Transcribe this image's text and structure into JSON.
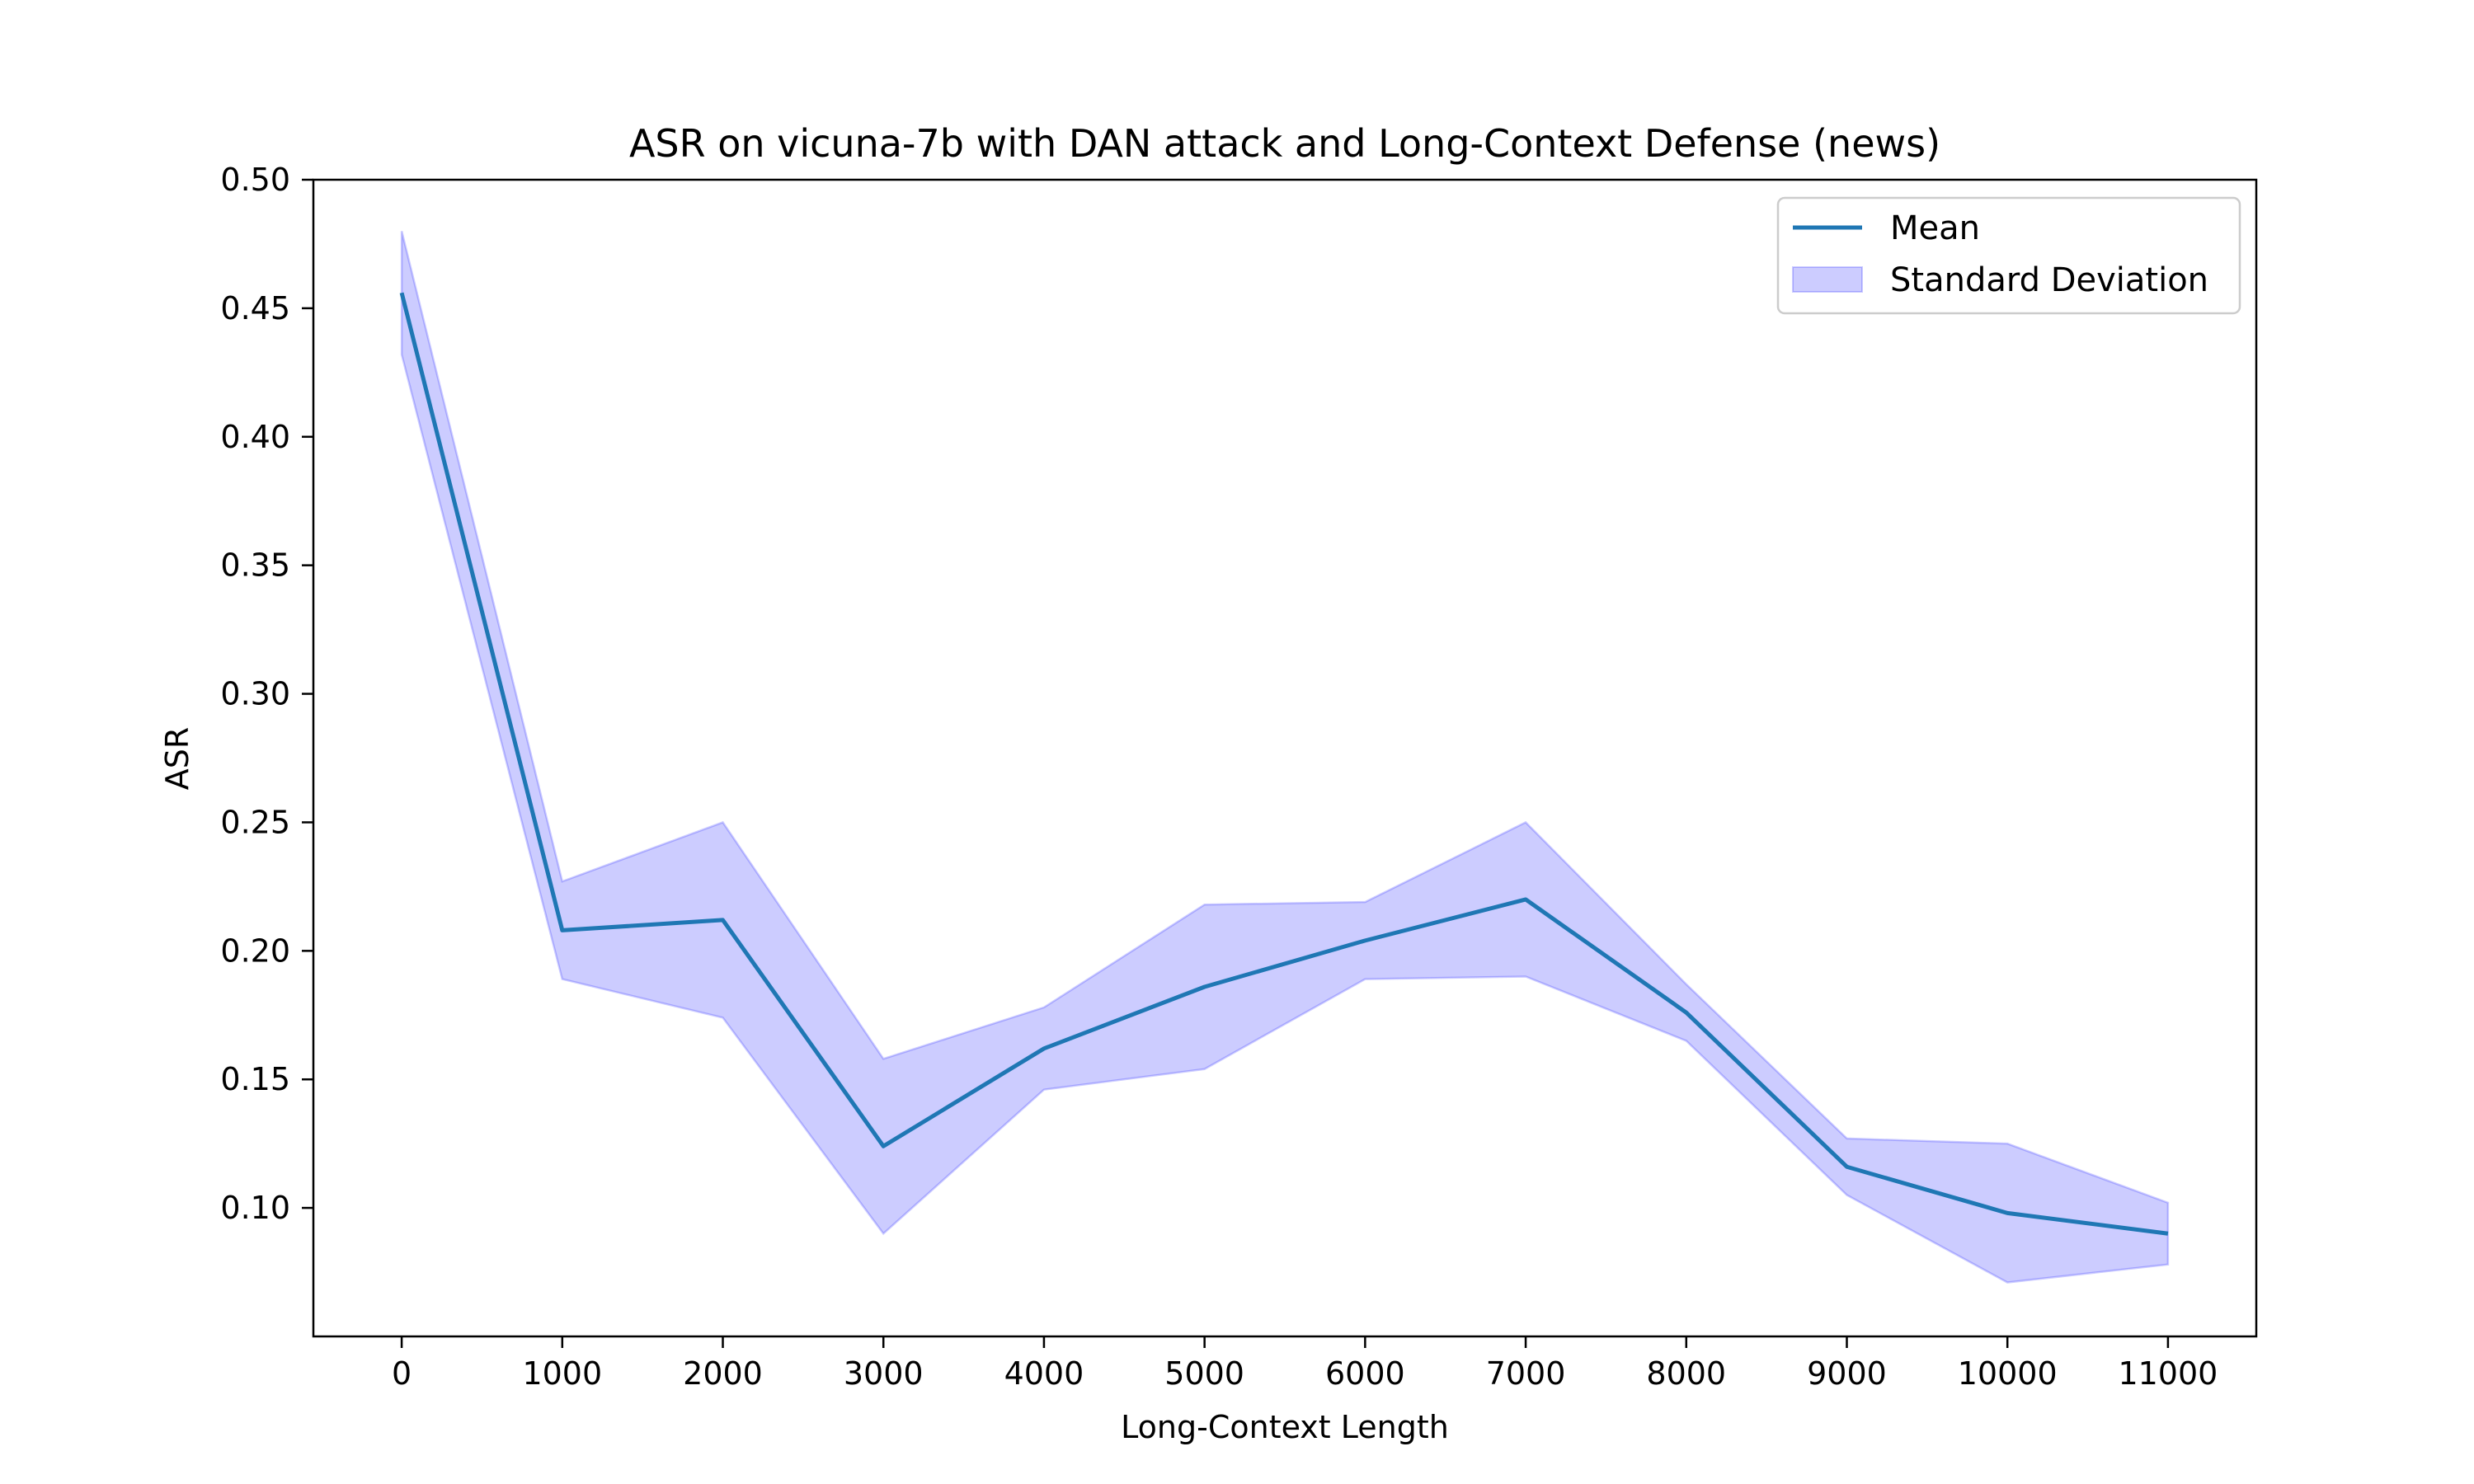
{
  "chart_data": {
    "type": "line",
    "title": "ASR on vicuna-7b with DAN attack and Long-Context Defense (news)",
    "xlabel": "Long-Context Length",
    "ylabel": "ASR",
    "x": [
      0,
      1000,
      2000,
      3000,
      4000,
      5000,
      6000,
      7000,
      8000,
      9000,
      10000,
      11000
    ],
    "xticks": [
      0,
      1000,
      2000,
      3000,
      4000,
      5000,
      6000,
      7000,
      8000,
      9000,
      10000,
      11000
    ],
    "yticks": [
      0.1,
      0.15,
      0.2,
      0.25,
      0.3,
      0.35,
      0.4,
      0.45,
      0.5
    ],
    "xlim": [
      -550,
      11550
    ],
    "ylim": [
      0.05,
      0.5
    ],
    "grid": false,
    "legend_position": "top-right",
    "series": [
      {
        "name": "Mean",
        "color": "#1f77b4",
        "values": [
          0.456,
          0.208,
          0.212,
          0.124,
          0.162,
          0.186,
          0.204,
          0.22,
          0.176,
          0.116,
          0.098,
          0.09
        ]
      }
    ],
    "band": {
      "name": "Standard Deviation",
      "fill_color": "#0000ff",
      "fill_opacity": 0.2,
      "upper": [
        0.48,
        0.227,
        0.25,
        0.158,
        0.178,
        0.218,
        0.219,
        0.25,
        0.187,
        0.127,
        0.125,
        0.102
      ],
      "lower": [
        0.432,
        0.189,
        0.174,
        0.09,
        0.146,
        0.154,
        0.189,
        0.19,
        0.165,
        0.105,
        0.071,
        0.078
      ]
    }
  }
}
